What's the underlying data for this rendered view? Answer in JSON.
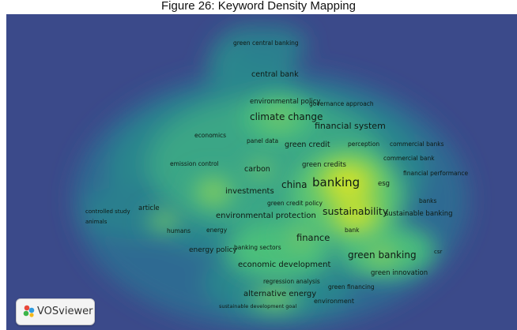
{
  "figure_caption": "Figure 26: Keyword Density Mapping",
  "viewer": {
    "brand_label": "VOSviewer",
    "brand_icon": "vosviewer-logo-icon"
  },
  "colors": {
    "background": "#3b4a8a",
    "low": "#2c8a8e",
    "mid": "#4cc07a",
    "high": "#f4ec1c"
  },
  "keywords": [
    {
      "id": "green-central-banking",
      "text": "green central banking",
      "weight": 0.45
    },
    {
      "id": "central-bank",
      "text": "central bank",
      "weight": 0.6
    },
    {
      "id": "environmental-policy",
      "text": "environmental policy",
      "weight": 0.55
    },
    {
      "id": "governance-approach",
      "text": "governance approach",
      "weight": 0.5
    },
    {
      "id": "climate-change",
      "text": "climate change",
      "weight": 0.8
    },
    {
      "id": "financial-system",
      "text": "financial system",
      "weight": 0.7
    },
    {
      "id": "economics",
      "text": "economics",
      "weight": 0.4
    },
    {
      "id": "panel-data",
      "text": "panel data",
      "weight": 0.45
    },
    {
      "id": "green-credit",
      "text": "green credit",
      "weight": 0.6
    },
    {
      "id": "perception",
      "text": "perception",
      "weight": 0.45
    },
    {
      "id": "commercial-banks",
      "text": "commercial banks",
      "weight": 0.45
    },
    {
      "id": "commercial-bank",
      "text": "commercial bank",
      "weight": 0.45
    },
    {
      "id": "emission-control",
      "text": "emission control",
      "weight": 0.45
    },
    {
      "id": "carbon",
      "text": "carbon",
      "weight": 0.6
    },
    {
      "id": "green-credits",
      "text": "green credits",
      "weight": 0.5
    },
    {
      "id": "financial-performance",
      "text": "financial performance",
      "weight": 0.45
    },
    {
      "id": "china",
      "text": "china",
      "weight": 0.85
    },
    {
      "id": "banking",
      "text": "banking",
      "weight": 1.0
    },
    {
      "id": "esg",
      "text": "esg",
      "weight": 0.5
    },
    {
      "id": "investments",
      "text": "investments",
      "weight": 0.6
    },
    {
      "id": "green-credit-policy",
      "text": "green credit policy",
      "weight": 0.45
    },
    {
      "id": "banks",
      "text": "banks",
      "weight": 0.45
    },
    {
      "id": "controlled-study",
      "text": "controlled study",
      "weight": 0.4
    },
    {
      "id": "article",
      "text": "article",
      "weight": 0.45
    },
    {
      "id": "environmental-protection",
      "text": "environmental protection",
      "weight": 0.7
    },
    {
      "id": "sustainability",
      "text": "sustainability",
      "weight": 0.9
    },
    {
      "id": "sustainable-banking",
      "text": "sustainable banking",
      "weight": 0.5
    },
    {
      "id": "animals",
      "text": "animals",
      "weight": 0.4
    },
    {
      "id": "humans",
      "text": "humans",
      "weight": 0.4
    },
    {
      "id": "energy",
      "text": "energy",
      "weight": 0.45
    },
    {
      "id": "bank",
      "text": "bank",
      "weight": 0.45
    },
    {
      "id": "finance",
      "text": "finance",
      "weight": 0.75
    },
    {
      "id": "energy-policy",
      "text": "energy policy",
      "weight": 0.55
    },
    {
      "id": "banking-sectors",
      "text": "banking sectors",
      "weight": 0.45
    },
    {
      "id": "green-banking",
      "text": "green banking",
      "weight": 0.85
    },
    {
      "id": "csr",
      "text": "csr",
      "weight": 0.4
    },
    {
      "id": "economic-development",
      "text": "economic development",
      "weight": 0.7
    },
    {
      "id": "green-innovation",
      "text": "green innovation",
      "weight": 0.5
    },
    {
      "id": "regression-analysis",
      "text": "regression analysis",
      "weight": 0.45
    },
    {
      "id": "green-financing",
      "text": "green financing",
      "weight": 0.45
    },
    {
      "id": "alternative-energy",
      "text": "alternative energy",
      "weight": 0.65
    },
    {
      "id": "environment",
      "text": "environment",
      "weight": 0.45
    },
    {
      "id": "sustainable-development-goal",
      "text": "sustainable development goal",
      "weight": 0.4
    }
  ]
}
